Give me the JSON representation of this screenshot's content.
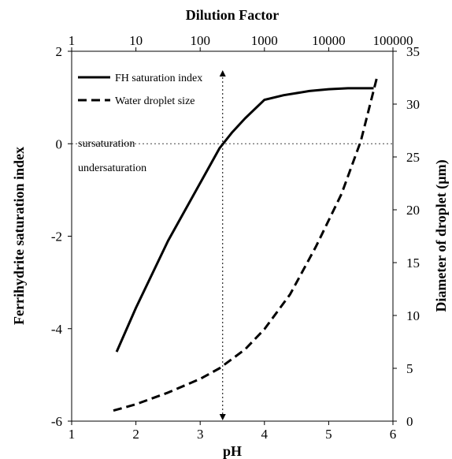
{
  "chart_data": {
    "type": "line",
    "title": "",
    "xlabel": "pH",
    "xlim": [
      1,
      6
    ],
    "x_ticks": [
      "1",
      "2",
      "3",
      "4",
      "5",
      "6"
    ],
    "ylabel_left": "Ferrihydrite saturation index",
    "ylim_left": [
      -6,
      2
    ],
    "y_ticks_left": [
      "-6",
      "-4",
      "-2",
      "0",
      "2"
    ],
    "ylabel_right": "Diameter of droplet (µm)",
    "ylim_right": [
      0,
      35
    ],
    "y_ticks_right": [
      "0",
      "5",
      "10",
      "15",
      "20",
      "25",
      "30",
      "35"
    ],
    "x2label": "Dilution Factor",
    "x2_scale": "log",
    "x2lim": [
      1,
      100000
    ],
    "x2_ticks": [
      "1",
      "10",
      "100",
      "1000",
      "10000",
      "100000"
    ],
    "grid": false,
    "legend_position": "top-left",
    "series": [
      {
        "name": "FH saturation index",
        "axis": "left",
        "style": "solid",
        "x": [
          1.7,
          2.0,
          2.5,
          3.0,
          3.3,
          3.5,
          3.7,
          4.0,
          4.3,
          4.7,
          5.0,
          5.3,
          5.7
        ],
        "y": [
          -4.5,
          -3.55,
          -2.1,
          -0.85,
          -0.1,
          0.25,
          0.55,
          0.95,
          1.05,
          1.14,
          1.18,
          1.2,
          1.2
        ]
      },
      {
        "name": "Water droplet size",
        "axis": "right",
        "style": "dashed",
        "x": [
          1.65,
          2.0,
          2.5,
          3.0,
          3.3,
          3.7,
          4.0,
          4.4,
          4.8,
          5.2,
          5.5,
          5.75
        ],
        "y": [
          1.0,
          1.6,
          2.7,
          4.0,
          5.0,
          6.8,
          8.7,
          12.0,
          16.5,
          21.5,
          26.5,
          32.5
        ]
      }
    ],
    "annotations": [
      {
        "text": "sursaturation",
        "position": "above zero line, left"
      },
      {
        "text": "undersaturation",
        "position": "below zero line, left"
      }
    ],
    "reference_lines": [
      {
        "orientation": "horizontal",
        "axis": "left",
        "value": 0,
        "style": "dotted"
      },
      {
        "orientation": "vertical",
        "axis": "x",
        "value": 3.35,
        "style": "dotted-arrow"
      }
    ]
  }
}
